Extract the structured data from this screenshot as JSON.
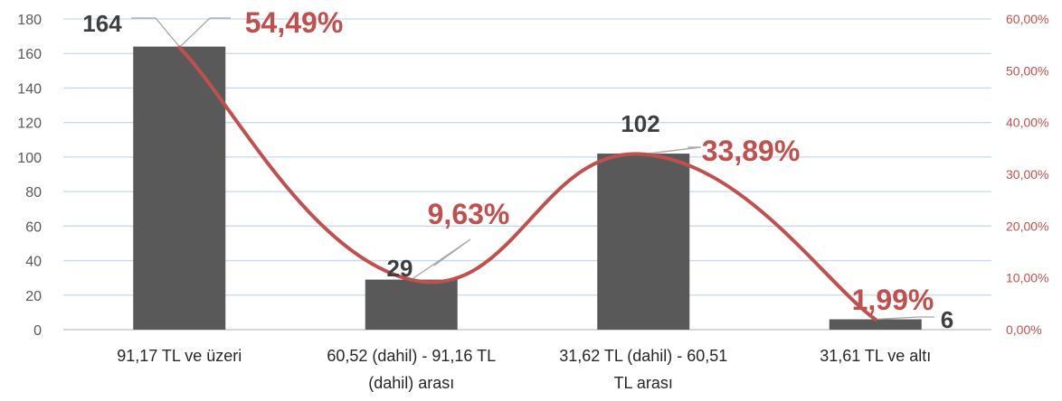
{
  "chart_data": {
    "type": "bar",
    "categories": [
      [
        "91,17 TL ve üzeri"
      ],
      [
        "60,52 (dahil) - 91,16 TL",
        "(dahil) arası"
      ],
      [
        "31,62 TL (dahil) - 60,51",
        "TL arası"
      ],
      [
        "31,61 TL ve altı"
      ]
    ],
    "series": [
      {
        "type": "bar",
        "values": [
          164,
          29,
          102,
          6
        ],
        "labels": [
          "164",
          "29",
          "102",
          "6"
        ],
        "color": "#595959",
        "axis": "left"
      },
      {
        "type": "line",
        "smooth": true,
        "values": [
          54.49,
          9.63,
          33.89,
          1.99
        ],
        "labels": [
          "54,49%",
          "9,63%",
          "33,89%",
          "1,99%"
        ],
        "color": "#c0504d",
        "axis": "right"
      }
    ],
    "y_left": {
      "min": 0,
      "max": 180,
      "step": 20,
      "ticks": [
        "0",
        "20",
        "40",
        "60",
        "80",
        "100",
        "120",
        "140",
        "160",
        "180"
      ]
    },
    "y_right": {
      "min": 0,
      "max": 60,
      "step": 10,
      "ticks": [
        "0,00%",
        "10,00%",
        "20,00%",
        "30,00%",
        "40,00%",
        "50,00%",
        "60,00%"
      ]
    },
    "grid": true,
    "legend": "none",
    "colors": {
      "bar": "#595959",
      "line": "#c0504d",
      "grid": "#c6d9f1",
      "axis": "#bfbfbf",
      "leader": "#a6a6a6"
    }
  }
}
